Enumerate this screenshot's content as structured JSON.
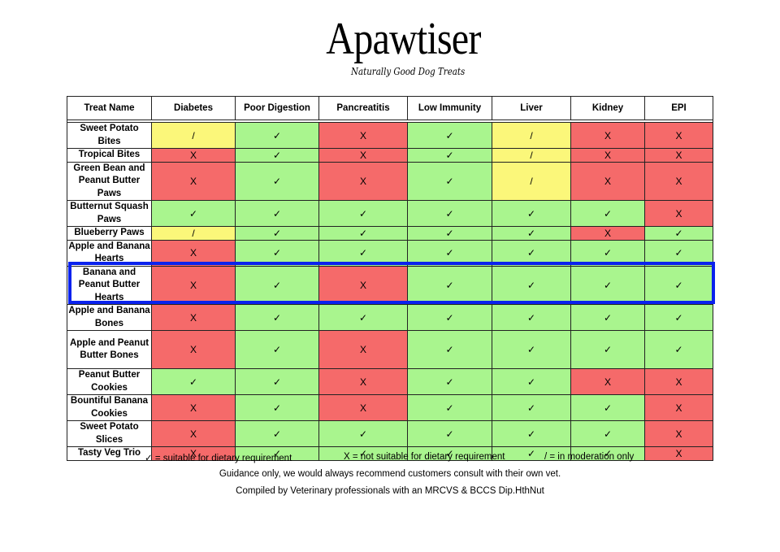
{
  "brand": {
    "name": "Apawtiser",
    "tagline": "Naturally Good Dog Treats"
  },
  "table": {
    "headers": [
      "Treat Name",
      "Diabetes",
      "Poor Digestion",
      "Pancreatitis",
      "Low Immunity",
      "Liver",
      "Kidney",
      "EPI"
    ],
    "rows": [
      {
        "name": "Sweet Potato Bites",
        "cells": [
          "/",
          "✓",
          "X",
          "✓",
          "/",
          "X",
          "X"
        ]
      },
      {
        "name": "Tropical Bites",
        "cells": [
          "X",
          "✓",
          "X",
          "✓",
          "/",
          "X",
          "X"
        ]
      },
      {
        "name": "Green Bean and Peanut Butter Paws",
        "cells": [
          "X",
          "✓",
          "X",
          "✓",
          "/",
          "X",
          "X"
        ]
      },
      {
        "name": "Butternut Squash Paws",
        "cells": [
          "✓",
          "✓",
          "✓",
          "✓",
          "✓",
          "✓",
          "X"
        ]
      },
      {
        "name": "Blueberry Paws",
        "cells": [
          "/",
          "✓",
          "✓",
          "✓",
          "✓",
          "X",
          "✓"
        ]
      },
      {
        "name": "Apple and Banana Hearts",
        "cells": [
          "X",
          "✓",
          "✓",
          "✓",
          "✓",
          "✓",
          "✓"
        ]
      },
      {
        "name": "Banana and Peanut Butter Hearts",
        "cells": [
          "X",
          "✓",
          "X",
          "✓",
          "✓",
          "✓",
          "✓"
        ]
      },
      {
        "name": "Apple and Banana Bones",
        "cells": [
          "X",
          "✓",
          "✓",
          "✓",
          "✓",
          "✓",
          "✓"
        ]
      },
      {
        "name": "Apple and Peanut Butter Bones",
        "cells": [
          "X",
          "✓",
          "X",
          "✓",
          "✓",
          "✓",
          "✓"
        ]
      },
      {
        "name": "Peanut Butter Cookies",
        "cells": [
          "✓",
          "✓",
          "X",
          "✓",
          "✓",
          "X",
          "X"
        ]
      },
      {
        "name": "Bountiful Banana Cookies",
        "cells": [
          "X",
          "✓",
          "X",
          "✓",
          "✓",
          "✓",
          "X"
        ]
      },
      {
        "name": "Sweet Potato Slices",
        "cells": [
          "X",
          "✓",
          "✓",
          "✓",
          "✓",
          "✓",
          "X"
        ]
      },
      {
        "name": "Tasty Veg Trio",
        "cells": [
          "X",
          "✓",
          "✓",
          "✓",
          "✓",
          "✓",
          "X"
        ]
      }
    ],
    "highlighted_row": 6
  },
  "legend": {
    "suitable": "✓ = suitable for dietary requirement",
    "not_suitable": "X = not suitable for dietary requirement",
    "moderation": "/ = in moderation only"
  },
  "notes": {
    "guidance": "Guidance only, we would always recommend customers consult with their own vet.",
    "compiled": "Compiled by Veterinary professionals with an MRCVS & BCCS Dip.HthNut"
  },
  "colors": {
    "suitable": "#a9f58e",
    "not_suitable": "#f56a6a",
    "moderation": "#fbf77a",
    "highlight": "#0a22ee"
  }
}
